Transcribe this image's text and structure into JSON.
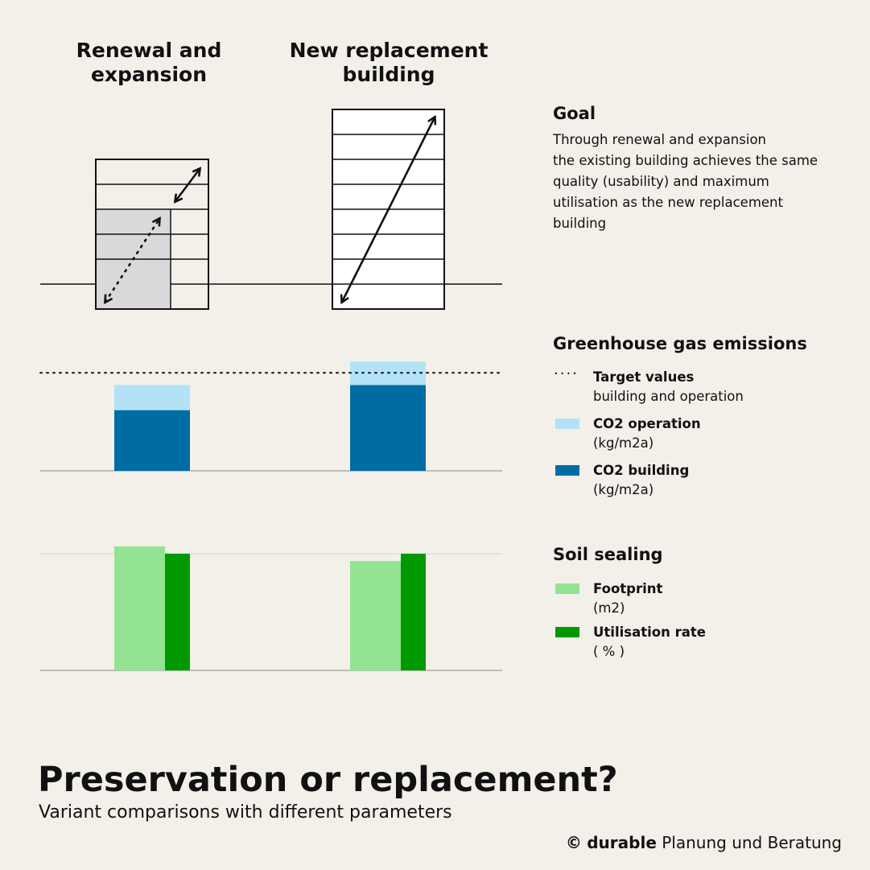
{
  "columns": {
    "left": "Renewal and expansion",
    "right": "New replacement building"
  },
  "goal": {
    "title": "Goal",
    "lines": [
      "Through renewal and expansion",
      "the existing building achieves the same",
      "quality (usability) and maximum",
      "utilisation as the new replacement",
      "building"
    ]
  },
  "ghg_legend": {
    "title": "Greenhouse gas emissions",
    "items": [
      {
        "symbol": "dots",
        "label": "Target values",
        "sub": "building and operation"
      },
      {
        "symbol": "swatch",
        "color": "#b3e2f7",
        "label": "CO2 operation",
        "sub": "(kg/m2a)"
      },
      {
        "symbol": "swatch",
        "color": "#006ca4",
        "label": "CO2 building",
        "sub": "(kg/m2a)"
      }
    ]
  },
  "soil_legend": {
    "title": "Soil sealing",
    "items": [
      {
        "symbol": "swatch",
        "color": "#93e392",
        "label": "Footprint",
        "sub": "(m2)"
      },
      {
        "symbol": "swatch",
        "color": "#009a00",
        "label": "Utilisation rate",
        "sub": "( % )"
      }
    ]
  },
  "chart_data": [
    {
      "type": "bar",
      "stacked": true,
      "categories": [
        "Renewal and expansion",
        "New replacement building"
      ],
      "series": [
        {
          "name": "CO2 building",
          "color": "#006ca4",
          "values": [
            70,
            99
          ]
        },
        {
          "name": "CO2 operation",
          "color": "#b3e2f7",
          "values": [
            29,
            27
          ]
        }
      ],
      "target": 113,
      "ylim": [
        0,
        130
      ],
      "ylabel": "(kg/m2a)"
    },
    {
      "type": "bar",
      "grouped": true,
      "categories": [
        "Renewal and expansion",
        "New replacement building"
      ],
      "series": [
        {
          "name": "Footprint",
          "color": "#93e392",
          "values": [
            154,
            136
          ]
        },
        {
          "name": "Utilisation rate",
          "color": "#009a00",
          "values": [
            145,
            145
          ]
        }
      ],
      "reference": 145,
      "ylim": [
        0,
        160
      ]
    }
  ],
  "title": "Preservation or replacement?",
  "subtitle": "Variant comparisons with different parameters",
  "credit": {
    "brand": "durable",
    "rest": "Planung und Beratung",
    "symbol": "©"
  }
}
